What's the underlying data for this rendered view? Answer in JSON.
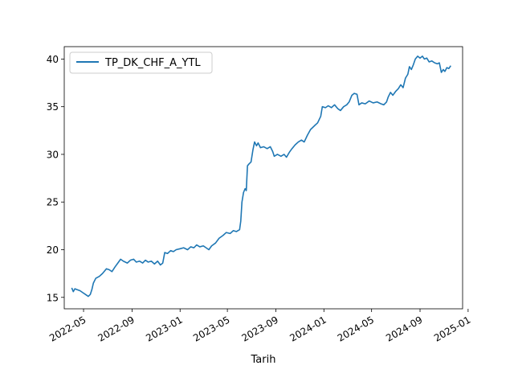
{
  "chart_data": {
    "type": "line",
    "title": "",
    "xlabel": "Tarih",
    "ylabel": "",
    "legend": {
      "placement": "top-left",
      "entries": [
        "TP_DK_CHF_A_YTL"
      ]
    },
    "grid": false,
    "xlim": [
      "2022-03-13",
      "2024-12-18"
    ],
    "ylim": [
      13.8,
      41.3
    ],
    "x_ticks": [
      "2022-05",
      "2022-09",
      "2023-01",
      "2023-05",
      "2023-09",
      "2024-01",
      "2024-05",
      "2024-09",
      "2025-01"
    ],
    "y_ticks": [
      15,
      20,
      25,
      30,
      35,
      40
    ],
    "series": [
      {
        "name": "TP_DK_CHF_A_YTL",
        "color": "#1f77b4",
        "points": [
          [
            "2022-04-01",
            16.0
          ],
          [
            "2022-04-05",
            15.6
          ],
          [
            "2022-04-09",
            15.9
          ],
          [
            "2022-04-15",
            15.8
          ],
          [
            "2022-04-22",
            15.7
          ],
          [
            "2022-04-29",
            15.5
          ],
          [
            "2022-05-06",
            15.3
          ],
          [
            "2022-05-13",
            15.1
          ],
          [
            "2022-05-18",
            15.3
          ],
          [
            "2022-05-22",
            15.8
          ],
          [
            "2022-05-26",
            16.5
          ],
          [
            "2022-06-01",
            17.0
          ],
          [
            "2022-06-10",
            17.2
          ],
          [
            "2022-06-18",
            17.5
          ],
          [
            "2022-06-24",
            17.8
          ],
          [
            "2022-06-28",
            18.0
          ],
          [
            "2022-07-05",
            17.9
          ],
          [
            "2022-07-12",
            17.7
          ],
          [
            "2022-07-20",
            18.2
          ],
          [
            "2022-07-27",
            18.6
          ],
          [
            "2022-08-03",
            19.0
          ],
          [
            "2022-08-10",
            18.8
          ],
          [
            "2022-08-20",
            18.6
          ],
          [
            "2022-08-28",
            18.9
          ],
          [
            "2022-09-05",
            19.0
          ],
          [
            "2022-09-12",
            18.7
          ],
          [
            "2022-09-20",
            18.8
          ],
          [
            "2022-09-28",
            18.6
          ],
          [
            "2022-10-05",
            18.9
          ],
          [
            "2022-10-12",
            18.7
          ],
          [
            "2022-10-20",
            18.8
          ],
          [
            "2022-10-28",
            18.5
          ],
          [
            "2022-11-05",
            18.8
          ],
          [
            "2022-11-12",
            18.4
          ],
          [
            "2022-11-18",
            18.6
          ],
          [
            "2022-11-23",
            19.7
          ],
          [
            "2022-11-30",
            19.6
          ],
          [
            "2022-12-08",
            19.9
          ],
          [
            "2022-12-15",
            19.8
          ],
          [
            "2022-12-22",
            20.0
          ],
          [
            "2023-01-01",
            20.1
          ],
          [
            "2023-01-10",
            20.2
          ],
          [
            "2023-01-20",
            20.0
          ],
          [
            "2023-01-28",
            20.3
          ],
          [
            "2023-02-05",
            20.2
          ],
          [
            "2023-02-12",
            20.5
          ],
          [
            "2023-02-20",
            20.3
          ],
          [
            "2023-03-01",
            20.4
          ],
          [
            "2023-03-08",
            20.2
          ],
          [
            "2023-03-15",
            20.0
          ],
          [
            "2023-03-22",
            20.4
          ],
          [
            "2023-04-01",
            20.7
          ],
          [
            "2023-04-10",
            21.2
          ],
          [
            "2023-04-20",
            21.5
          ],
          [
            "2023-04-28",
            21.8
          ],
          [
            "2023-05-08",
            21.7
          ],
          [
            "2023-05-16",
            22.0
          ],
          [
            "2023-05-24",
            21.9
          ],
          [
            "2023-06-01",
            22.1
          ],
          [
            "2023-06-04",
            23.0
          ],
          [
            "2023-06-07",
            25.0
          ],
          [
            "2023-06-11",
            26.0
          ],
          [
            "2023-06-15",
            26.4
          ],
          [
            "2023-06-18",
            26.2
          ],
          [
            "2023-06-21",
            28.8
          ],
          [
            "2023-06-25",
            29.0
          ],
          [
            "2023-06-30",
            29.2
          ],
          [
            "2023-07-05",
            30.5
          ],
          [
            "2023-07-09",
            31.3
          ],
          [
            "2023-07-14",
            30.9
          ],
          [
            "2023-07-18",
            31.2
          ],
          [
            "2023-07-24",
            30.7
          ],
          [
            "2023-08-01",
            30.8
          ],
          [
            "2023-08-10",
            30.6
          ],
          [
            "2023-08-18",
            30.8
          ],
          [
            "2023-08-24",
            30.3
          ],
          [
            "2023-08-28",
            29.8
          ],
          [
            "2023-09-05",
            30.0
          ],
          [
            "2023-09-14",
            29.8
          ],
          [
            "2023-09-22",
            30.0
          ],
          [
            "2023-09-28",
            29.7
          ],
          [
            "2023-10-05",
            30.2
          ],
          [
            "2023-10-12",
            30.6
          ],
          [
            "2023-10-20",
            31.0
          ],
          [
            "2023-10-28",
            31.3
          ],
          [
            "2023-11-05",
            31.5
          ],
          [
            "2023-11-12",
            31.3
          ],
          [
            "2023-11-20",
            32.0
          ],
          [
            "2023-11-28",
            32.6
          ],
          [
            "2023-12-08",
            33.0
          ],
          [
            "2023-12-16",
            33.3
          ],
          [
            "2023-12-24",
            34.0
          ],
          [
            "2023-12-28",
            35.0
          ],
          [
            "2024-01-05",
            34.9
          ],
          [
            "2024-01-12",
            35.1
          ],
          [
            "2024-01-20",
            34.9
          ],
          [
            "2024-01-28",
            35.2
          ],
          [
            "2024-02-05",
            34.8
          ],
          [
            "2024-02-12",
            34.6
          ],
          [
            "2024-02-20",
            35.0
          ],
          [
            "2024-02-28",
            35.2
          ],
          [
            "2024-03-05",
            35.5
          ],
          [
            "2024-03-12",
            36.2
          ],
          [
            "2024-03-18",
            36.4
          ],
          [
            "2024-03-25",
            36.3
          ],
          [
            "2024-03-30",
            35.2
          ],
          [
            "2024-04-06",
            35.4
          ],
          [
            "2024-04-15",
            35.3
          ],
          [
            "2024-04-25",
            35.6
          ],
          [
            "2024-05-05",
            35.4
          ],
          [
            "2024-05-15",
            35.5
          ],
          [
            "2024-05-25",
            35.3
          ],
          [
            "2024-06-01",
            35.2
          ],
          [
            "2024-06-08",
            35.5
          ],
          [
            "2024-06-12",
            36.0
          ],
          [
            "2024-06-18",
            36.5
          ],
          [
            "2024-06-24",
            36.2
          ],
          [
            "2024-07-01",
            36.6
          ],
          [
            "2024-07-08",
            36.9
          ],
          [
            "2024-07-14",
            37.3
          ],
          [
            "2024-07-20",
            37.0
          ],
          [
            "2024-07-26",
            38.0
          ],
          [
            "2024-08-01",
            38.4
          ],
          [
            "2024-08-05",
            39.2
          ],
          [
            "2024-08-10",
            38.9
          ],
          [
            "2024-08-15",
            39.4
          ],
          [
            "2024-08-20",
            40.0
          ],
          [
            "2024-08-26",
            40.3
          ],
          [
            "2024-09-01",
            40.1
          ],
          [
            "2024-09-07",
            40.3
          ],
          [
            "2024-09-12",
            40.0
          ],
          [
            "2024-09-18",
            40.1
          ],
          [
            "2024-09-24",
            39.7
          ],
          [
            "2024-10-01",
            39.8
          ],
          [
            "2024-10-08",
            39.6
          ],
          [
            "2024-10-15",
            39.5
          ],
          [
            "2024-10-20",
            39.6
          ],
          [
            "2024-10-25",
            38.6
          ],
          [
            "2024-10-30",
            38.9
          ],
          [
            "2024-11-03",
            38.7
          ],
          [
            "2024-11-08",
            39.1
          ],
          [
            "2024-11-13",
            39.0
          ],
          [
            "2024-11-18",
            39.3
          ]
        ]
      }
    ]
  }
}
